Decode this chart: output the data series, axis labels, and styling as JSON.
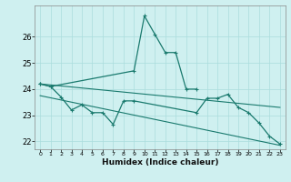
{
  "xlabel": "Humidex (Indice chaleur)",
  "color": "#1a7a6e",
  "bg_color": "#cff0f0",
  "grid_color": "#aadddd",
  "ylim": [
    21.7,
    27.2
  ],
  "yticks": [
    22,
    23,
    24,
    25,
    26
  ],
  "xlim": [
    -0.5,
    23.5
  ],
  "line1_x": [
    0,
    1,
    9,
    10,
    11,
    12,
    13,
    14,
    15
  ],
  "line1_y": [
    24.2,
    24.1,
    24.7,
    26.8,
    26.1,
    25.4,
    25.4,
    24.0,
    24.0
  ],
  "line2_x": [
    0,
    1,
    2,
    3,
    4,
    5,
    6,
    7,
    8,
    9,
    15,
    16,
    17,
    18,
    19,
    20,
    21,
    22,
    23
  ],
  "line2_y": [
    24.2,
    24.1,
    23.7,
    23.2,
    23.4,
    23.1,
    23.1,
    22.65,
    23.55,
    23.55,
    23.1,
    23.65,
    23.65,
    23.8,
    23.3,
    23.1,
    22.7,
    22.2,
    21.9
  ],
  "line3_x": [
    0,
    23
  ],
  "line3_y": [
    24.2,
    23.3
  ],
  "line4_x": [
    0,
    23
  ],
  "line4_y": [
    23.75,
    21.85
  ]
}
